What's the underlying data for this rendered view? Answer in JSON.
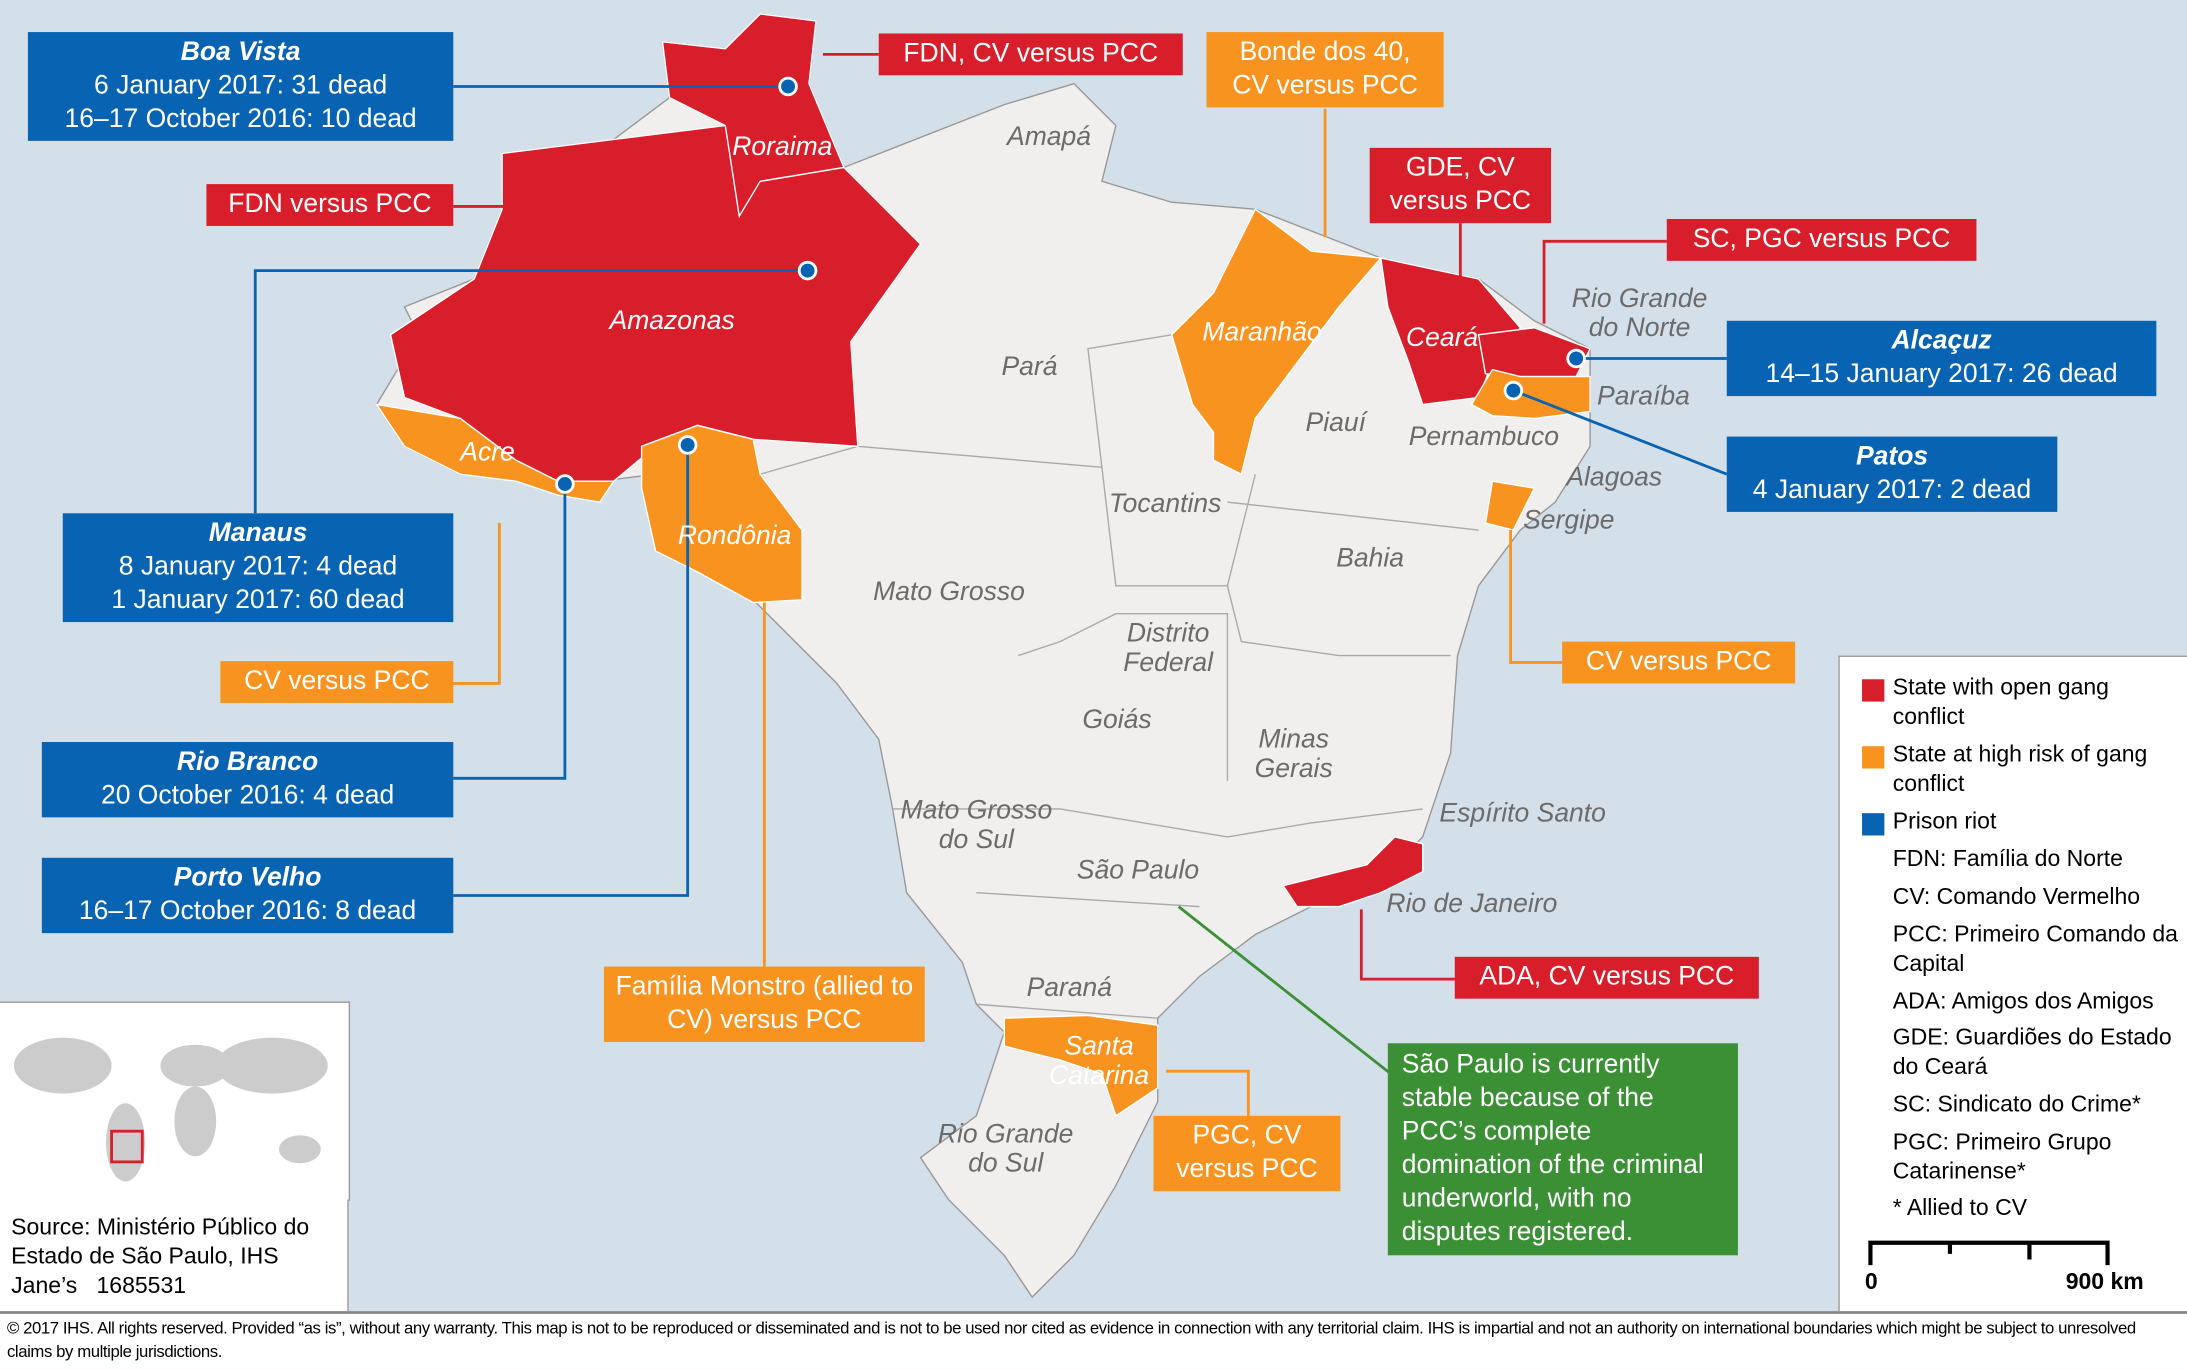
{
  "colors": {
    "open_conflict": "#d81e2a",
    "high_risk": "#f7931e",
    "prison_riot": "#0863b2",
    "stable_note": "#3b8f35",
    "land": "#f0efee",
    "sea": "#d3dfe9"
  },
  "riots": [
    {
      "title": "Boa Vista",
      "lines": [
        "6 January 2017: 31 dead",
        "16–17 October 2016: 10 dead"
      ]
    },
    {
      "title": "Manaus",
      "lines": [
        "8 January 2017: 4 dead",
        "1 January 2017: 60 dead"
      ]
    },
    {
      "title": "Rio Branco",
      "lines": [
        "20 October 2016: 4 dead"
      ]
    },
    {
      "title": "Porto Velho",
      "lines": [
        "16–17 October 2016: 8 dead"
      ]
    },
    {
      "title": "Alcaçuz",
      "lines": [
        "14–15 January 2017: 26 dead"
      ]
    },
    {
      "title": "Patos",
      "lines": [
        "4 January 2017: 2 dead"
      ]
    }
  ],
  "conflicts": {
    "roraima": "FDN, CV versus PCC",
    "amazonas": "FDN versus PCC",
    "maranhao": "Bonde dos 40, CV versus PCC",
    "ceara": "GDE, CV versus PCC",
    "rn": "SC, PGC versus PCC",
    "acre": "CV versus PCC",
    "sergipe": "CV versus PCC",
    "rondonia": "Família Monstro (allied to CV) versus PCC",
    "rj": "ADA, CV versus PCC",
    "sc": "PGC, CV versus PCC"
  },
  "sao_paulo_note": "São Paulo is currently stable because of the PCC’s complete domination of the criminal underworld, with no disputes registered.",
  "states": {
    "roraima": "Roraima",
    "amapa": "Amapá",
    "amazonas": "Amazonas",
    "para": "Pará",
    "maranhao": "Maranhão",
    "ceara": "Ceará",
    "rn": "Rio Grande do Norte",
    "paraiba": "Paraíba",
    "pernambuco": "Pernambuco",
    "alagoas": "Alagoas",
    "sergipe": "Sergipe",
    "piaui": "Piauí",
    "acre": "Acre",
    "rondonia": "Rondônia",
    "tocantins": "Tocantins",
    "bahia": "Bahia",
    "mato_grosso": "Mato Grosso",
    "df": "Distrito Federal",
    "goias": "Goiás",
    "minas": "Minas Gerais",
    "es": "Espírito Santo",
    "ms": "Mato Grosso do Sul",
    "sp": "São Paulo",
    "rj": "Rio de Janeiro",
    "parana": "Paraná",
    "sc": "Santa Catarina",
    "rs": "Rio Grande do Sul"
  },
  "legend": {
    "items": [
      "State with open gang conflict",
      "State at high risk of gang conflict",
      "Prison riot"
    ],
    "abbrev": [
      "FDN: Família do Norte",
      "CV: Comando Vermelho",
      "PCC: Primeiro Comando da Capital",
      "ADA: Amigos dos Amigos",
      "GDE: Guardiões do Estado do Ceará",
      "SC: Sindicato do Crime*",
      "PGC: Primeiro Grupo Catarinense*",
      "* Allied to CV"
    ],
    "scale_start": "0",
    "scale_end": "900 km"
  },
  "source": "Source: Ministério Público do Estado de São Paulo, IHS Jane’s",
  "figure_id": "1685531",
  "copyright": "© 2017 IHS. All rights reserved. Provided “as is”, without any warranty. This map is not to be reproduced or disseminated and is not to be used nor cited as evidence in connection with any territorial claim. IHS is impartial and not an authority on international boundaries which might be subject to unresolved claims by multiple jurisdictions."
}
